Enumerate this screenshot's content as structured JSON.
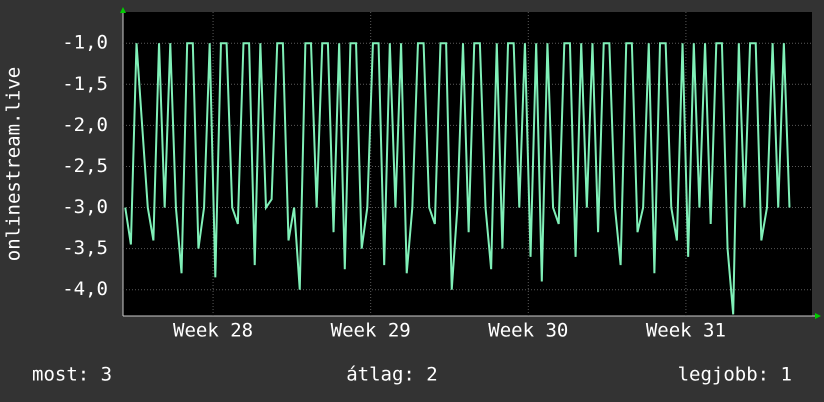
{
  "chart_data": {
    "type": "line",
    "y_label": "onlinestream.live",
    "x": [
      0,
      0.25,
      0.5,
      0.75,
      1,
      1.25,
      1.5,
      1.75,
      2,
      2.25,
      2.5,
      2.75,
      3,
      3.25,
      3.5,
      3.75,
      4,
      4.25,
      4.5,
      4.75,
      5,
      5.25,
      5.5,
      5.75,
      6,
      6.25,
      6.5,
      6.75,
      7,
      7.25,
      7.5,
      7.75,
      8,
      8.25,
      8.5,
      8.75,
      9,
      9.25,
      9.5,
      9.75,
      10,
      10.25,
      10.5,
      10.75,
      11,
      11.25,
      11.5,
      11.75,
      12,
      12.25,
      12.5,
      12.75,
      13,
      13.25,
      13.5,
      13.75,
      14,
      14.25,
      14.5,
      14.75,
      15,
      15.25,
      15.5,
      15.75,
      16,
      16.25,
      16.5,
      16.75,
      17,
      17.25,
      17.5,
      17.75,
      18,
      18.25,
      18.5,
      18.75,
      19,
      19.25,
      19.5,
      19.75,
      20,
      20.25,
      20.5,
      20.75,
      21,
      21.25,
      21.5,
      21.75,
      22,
      22.25,
      22.5,
      22.75,
      23,
      23.25,
      23.5,
      23.75,
      24,
      24.25,
      24.5,
      24.75,
      25,
      25.25,
      25.5,
      25.75,
      26,
      26.25,
      26.5,
      26.75,
      27,
      27.25,
      27.5,
      27.75,
      28,
      28.25,
      28.5,
      28.75,
      29,
      29.25,
      29.5
    ],
    "series": [
      {
        "color": "#80f0b8",
        "values": [
          -3,
          -3.45,
          -1,
          -2,
          -3,
          -3.4,
          -1,
          -3,
          -1,
          -3,
          -3.8,
          -1,
          -1,
          -3.5,
          -3,
          -1,
          -3.85,
          -1,
          -1,
          -3,
          -3.2,
          -1,
          -1,
          -3.7,
          -1,
          -3,
          -2.9,
          -1,
          -1,
          -3.4,
          -3,
          -4,
          -1,
          -1,
          -3,
          -1,
          -1,
          -3.3,
          -1,
          -3.75,
          -1,
          -1,
          -3.5,
          -3,
          -1,
          -1,
          -3.7,
          -1,
          -3,
          -1,
          -3.8,
          -3,
          -1,
          -1,
          -3,
          -3.2,
          -1,
          -1,
          -4,
          -3,
          -1,
          -3.3,
          -1,
          -1,
          -3,
          -3.75,
          -1,
          -3.5,
          -1,
          -1,
          -3,
          -1,
          -3.6,
          -1,
          -3.9,
          -1,
          -3,
          -3.2,
          -1,
          -1,
          -3.6,
          -1,
          -3,
          -1,
          -3.3,
          -1,
          -1,
          -3,
          -3.7,
          -1,
          -1,
          -3.3,
          -3,
          -1,
          -3.8,
          -1,
          -1,
          -3,
          -3.4,
          -1,
          -3.6,
          -1,
          -3,
          -1,
          -3.2,
          -1,
          -1,
          -3.5,
          -4.3,
          -1,
          -3,
          -1,
          -1,
          -3.4,
          -3,
          -1,
          -3,
          -1,
          -3
        ]
      }
    ],
    "xlim": [
      -0.1,
      30.5
    ],
    "xticks": [
      {
        "value": 3.9,
        "label": "Week 28"
      },
      {
        "value": 10.9,
        "label": "Week 29"
      },
      {
        "value": 17.9,
        "label": "Week 30"
      },
      {
        "value": 24.9,
        "label": "Week 31"
      }
    ],
    "ylim": [
      -4.32,
      -0.62
    ],
    "yticks": [
      {
        "value": -1,
        "label": "-1,0"
      },
      {
        "value": -1.5,
        "label": "-1,5"
      },
      {
        "value": -2,
        "label": "-2,0"
      },
      {
        "value": -2.5,
        "label": "-2,5"
      },
      {
        "value": -3,
        "label": "-3,0"
      },
      {
        "value": -3.5,
        "label": "-3,5"
      },
      {
        "value": -4,
        "label": "-4,0"
      }
    ],
    "grid": true,
    "stats": [
      "most: 3",
      "átlag: 2",
      "legjobb: 1"
    ]
  }
}
